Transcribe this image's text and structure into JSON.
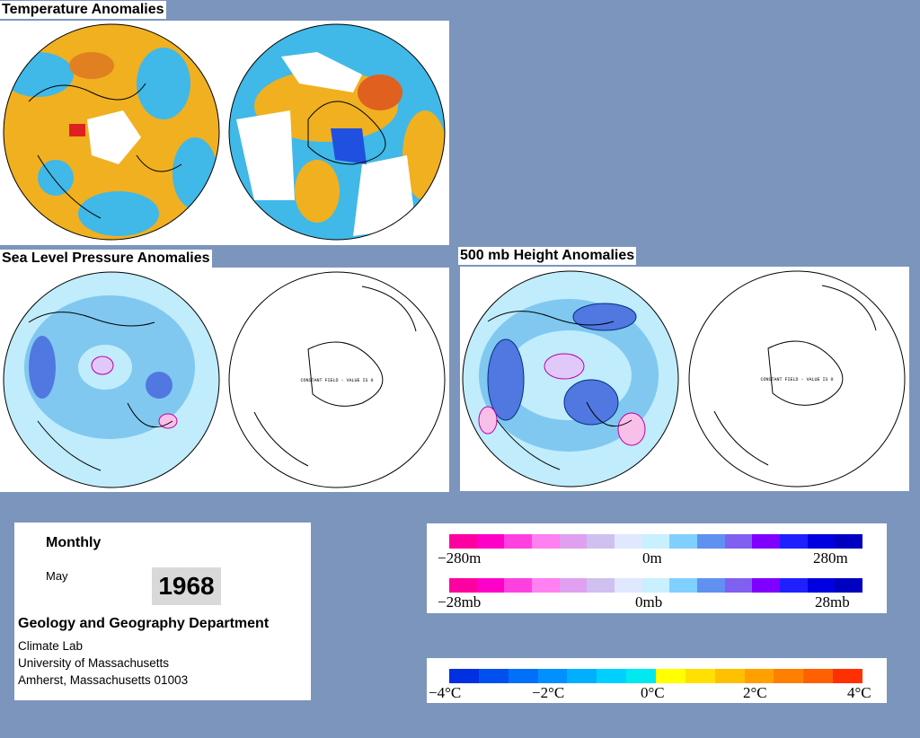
{
  "titles": {
    "temperature": "Temperature Anomalies",
    "slp": "Sea Level Pressure Anomalies",
    "height500": "500 mb Height Anomalies"
  },
  "maps": {
    "slp_south_label": "CONSTANT FIELD - VALUE IS 0",
    "height_south_label": "CONSTANT FIELD - VALUE IS 0"
  },
  "info": {
    "period": "Monthly",
    "month": "May",
    "year": "1968",
    "department": "Geology and Geography Department",
    "lab": "Climate Lab",
    "university": "University of Massachusetts",
    "address": "Amherst, Massachusetts 01003"
  },
  "legend_pressure": {
    "colors": [
      "#ff00a0",
      "#ff00c8",
      "#ff40e0",
      "#ff80f0",
      "#e0a0f0",
      "#d0c0f0",
      "#e0e8ff",
      "#c8f0ff",
      "#80d0ff",
      "#6090f0",
      "#8060f0",
      "#8000ff",
      "#2020ff",
      "#0000e0",
      "#0000c0"
    ],
    "height_labels": [
      "−280m",
      "0m",
      "280m"
    ],
    "slp_labels": [
      "−28mb",
      "0mb",
      "28mb"
    ]
  },
  "legend_temperature": {
    "colors": [
      "#0030e0",
      "#0050f0",
      "#0070f8",
      "#0090ff",
      "#00b0ff",
      "#00d0ff",
      "#00e8f0",
      "#ffff00",
      "#ffe000",
      "#ffc000",
      "#ffa000",
      "#ff8000",
      "#ff6000",
      "#ff3000"
    ],
    "labels": [
      "−4°C",
      "−2°C",
      "0°C",
      "2°C",
      "4°C"
    ]
  },
  "colors": {
    "background": "#7b95bd",
    "temp_warm": "#f0b020",
    "temp_cool": "#40b8e8",
    "pressure_light": "#c0ecfc",
    "pressure_mid": "#80c8f0",
    "pressure_dark": "#5078e0"
  }
}
